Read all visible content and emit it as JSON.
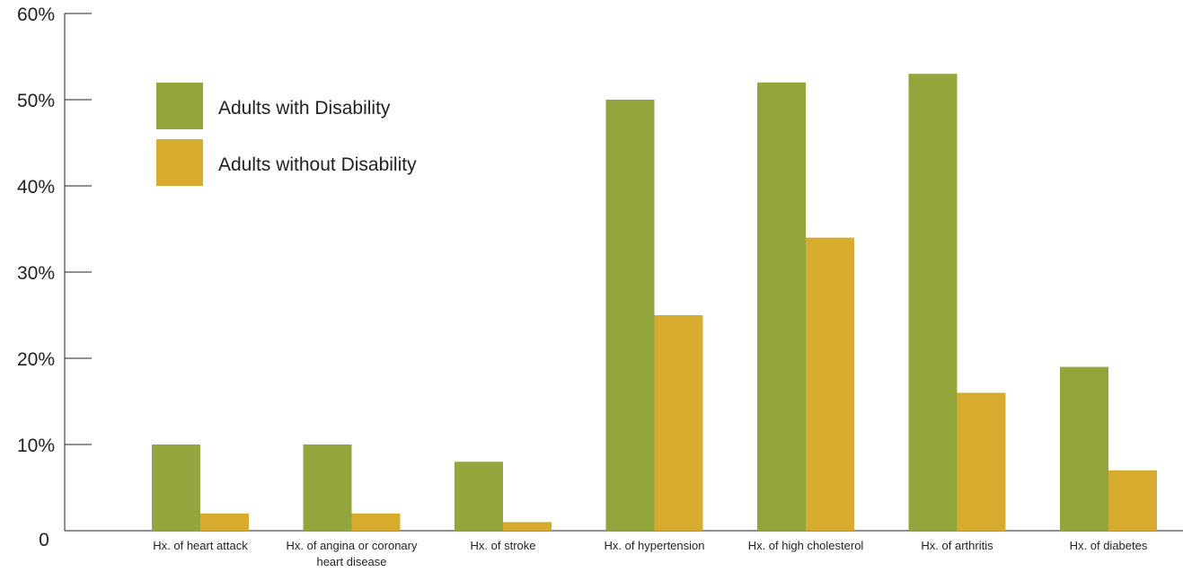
{
  "chart_data": {
    "type": "bar",
    "categories": [
      [
        "Hx. of heart attack"
      ],
      [
        "Hx. of angina or coronary",
        "heart disease"
      ],
      [
        "Hx. of stroke"
      ],
      [
        "Hx. of hypertension"
      ],
      [
        "Hx. of high cholesterol"
      ],
      [
        "Hx. of arthritis"
      ],
      [
        "Hx. of diabetes"
      ]
    ],
    "series": [
      {
        "name": "Adults with Disability",
        "color": "#93a63d",
        "values": [
          10,
          10,
          8,
          50,
          52,
          53,
          19
        ]
      },
      {
        "name": "Adults without Disability",
        "color": "#d7ac2e",
        "values": [
          2,
          2,
          1,
          25,
          34,
          16,
          7
        ]
      }
    ],
    "yticks": [
      "0",
      "10%",
      "20%",
      "30%",
      "40%",
      "50%",
      "60%"
    ],
    "ylim": [
      0,
      60
    ],
    "legend_position": "top-left",
    "grid": false
  }
}
